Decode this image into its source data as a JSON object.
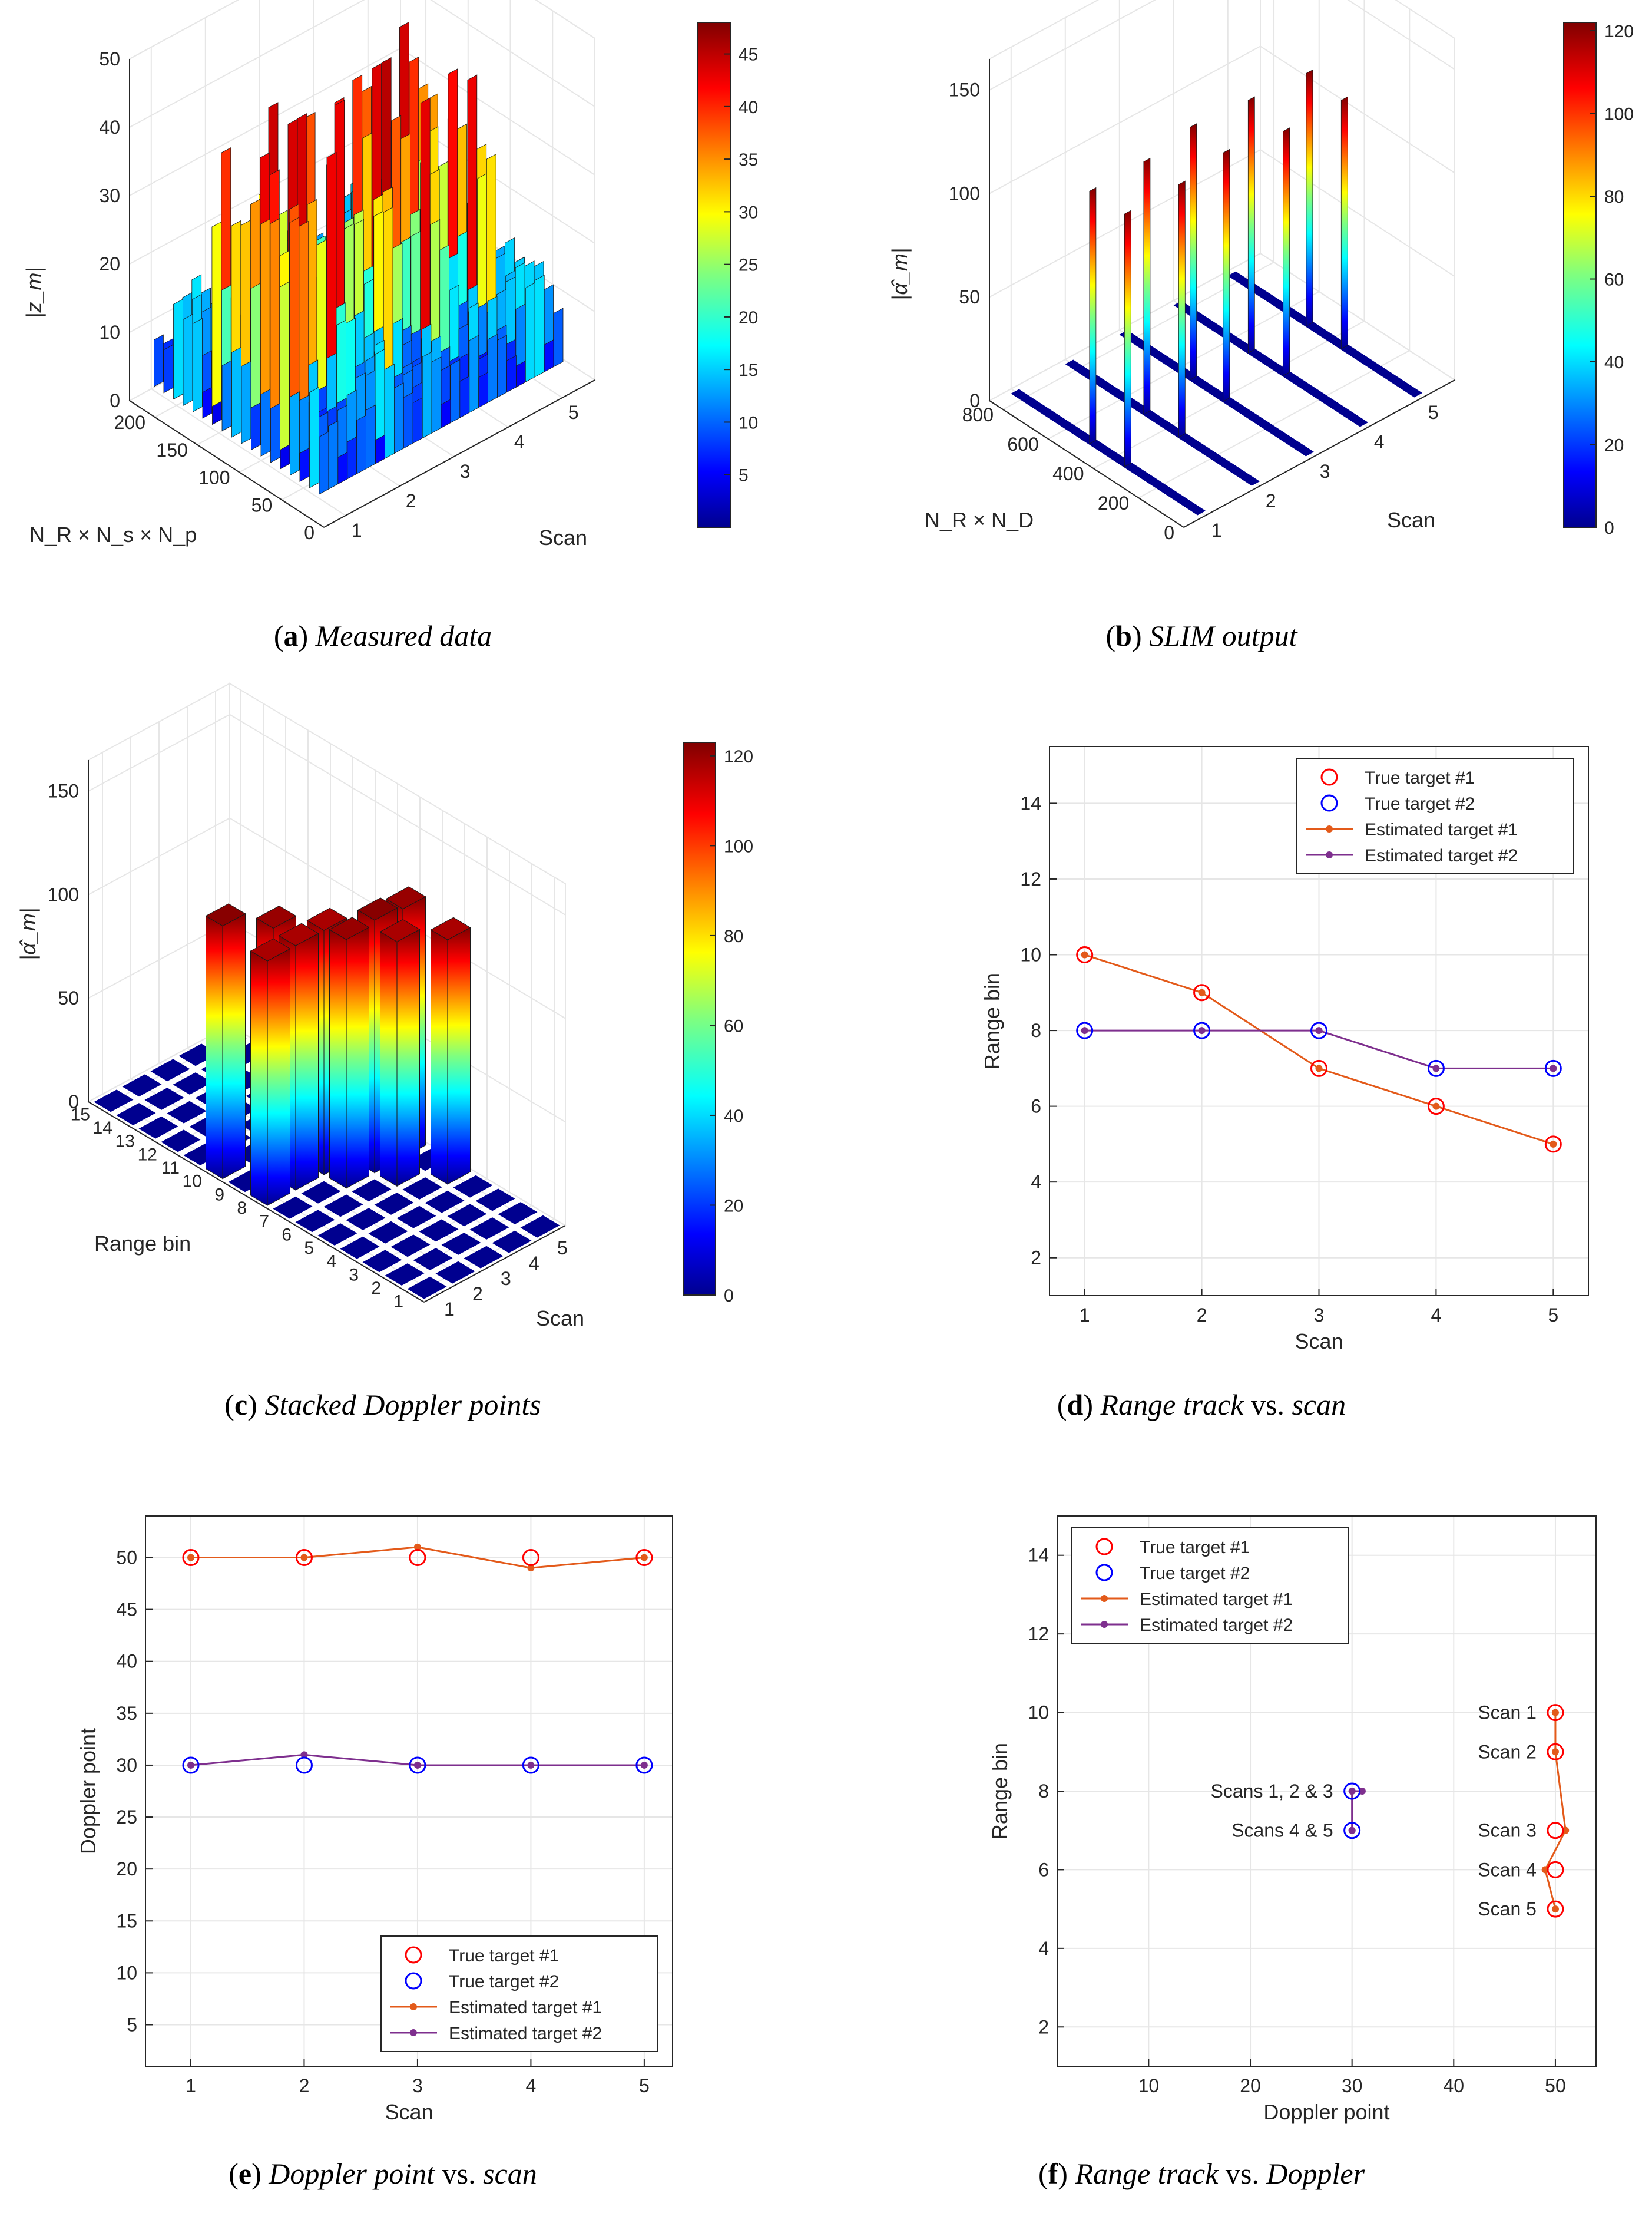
{
  "captions": {
    "a": {
      "letter": "a",
      "text": "Measured data"
    },
    "b": {
      "letter": "b",
      "text": "SLIM output"
    },
    "c": {
      "letter": "c",
      "text": "Stacked Doppler points"
    },
    "d": {
      "letter": "d",
      "pre": "Range track",
      "mid": " vs. ",
      "post": "scan"
    },
    "e": {
      "letter": "e",
      "pre": "Doppler point",
      "mid": " vs. ",
      "post": "scan"
    },
    "f": {
      "letter": "f",
      "pre": "Range track",
      "mid": " vs. ",
      "post": "Doppler"
    }
  },
  "colors": {
    "true1": "#ff0000",
    "true2": "#0000ff",
    "est1": "#e35a1a",
    "est2": "#7e2f8e",
    "grid": "#e6e6e6",
    "axis": "#262626"
  },
  "chart_data": [
    {
      "id": "a",
      "type": "surface3d",
      "title": "",
      "zlabel": "|z_m|",
      "ylabel": "N_R × N_s × N_p",
      "xlabel": "Scan",
      "zticks": [
        0,
        10,
        20,
        30,
        40,
        50
      ],
      "yticks": [
        0,
        50,
        100,
        150,
        200
      ],
      "xticks": [
        1,
        2,
        3,
        4,
        5
      ],
      "colorbar": {
        "min": 0,
        "max": 48,
        "ticks": [
          5,
          10,
          15,
          20,
          25,
          30,
          35,
          40,
          45
        ]
      }
    },
    {
      "id": "b",
      "type": "stem3d",
      "title": "",
      "zlabel": "|α̂_m|",
      "ylabel": "N_R × N_D",
      "xlabel": "Scan",
      "zticks": [
        0,
        50,
        100,
        150
      ],
      "yticks": [
        0,
        200,
        400,
        600,
        800
      ],
      "xticks": [
        1,
        2,
        3,
        4,
        5
      ],
      "colorbar": {
        "min": 0,
        "max": 122,
        "ticks": [
          0,
          20,
          40,
          60,
          80,
          100,
          120
        ]
      }
    },
    {
      "id": "c",
      "type": "bar3d",
      "title": "",
      "zlabel": "|α̂_m|",
      "ylabel": "Range bin",
      "xlabel": "Scan",
      "zticks": [
        0,
        50,
        100,
        150
      ],
      "yticks": [
        1,
        2,
        3,
        4,
        5,
        6,
        7,
        8,
        9,
        10,
        11,
        12,
        13,
        14,
        15
      ],
      "xticks": [
        1,
        2,
        3,
        4,
        5
      ],
      "colorbar": {
        "min": 0,
        "max": 123,
        "ticks": [
          0,
          20,
          40,
          60,
          80,
          100,
          120
        ]
      }
    },
    {
      "id": "d",
      "type": "line",
      "title": "",
      "xlabel": "Scan",
      "ylabel": "Range bin",
      "xlim": [
        0.7,
        5.3
      ],
      "ylim": [
        1,
        15.5
      ],
      "xticks": [
        1,
        2,
        3,
        4,
        5
      ],
      "yticks": [
        2,
        4,
        6,
        8,
        10,
        12,
        14
      ],
      "legend": "top-right",
      "series": [
        {
          "name": "True target #1",
          "style": "circle",
          "x": [
            1,
            2,
            3,
            4,
            5
          ],
          "y": [
            10,
            9,
            7,
            6,
            5
          ]
        },
        {
          "name": "True target #2",
          "style": "circle",
          "x": [
            1,
            2,
            3,
            4,
            5
          ],
          "y": [
            8,
            8,
            8,
            7,
            7
          ]
        },
        {
          "name": "Estimated target #1",
          "style": "line-dot",
          "x": [
            1,
            2,
            3,
            4,
            5
          ],
          "y": [
            10,
            9,
            7,
            6,
            5
          ]
        },
        {
          "name": "Estimated target #2",
          "style": "line-dot",
          "x": [
            1,
            2,
            3,
            4,
            5
          ],
          "y": [
            8,
            8,
            8,
            7,
            7
          ]
        }
      ]
    },
    {
      "id": "e",
      "type": "line",
      "title": "",
      "xlabel": "Scan",
      "ylabel": "Doppler point",
      "xlim": [
        0.6,
        5.25
      ],
      "ylim": [
        1,
        54
      ],
      "xticks": [
        1,
        2,
        3,
        4,
        5
      ],
      "yticks": [
        5,
        10,
        15,
        20,
        25,
        30,
        35,
        40,
        45,
        50
      ],
      "legend": "bottom-right",
      "series": [
        {
          "name": "True target #1",
          "style": "circle",
          "x": [
            1,
            2,
            3,
            4,
            5
          ],
          "y": [
            50,
            50,
            50,
            50,
            50
          ]
        },
        {
          "name": "True target #2",
          "style": "circle",
          "x": [
            1,
            2,
            3,
            4,
            5
          ],
          "y": [
            30,
            30,
            30,
            30,
            30
          ]
        },
        {
          "name": "Estimated target #1",
          "style": "line-dot",
          "x": [
            1,
            2,
            3,
            4,
            5
          ],
          "y": [
            50,
            50,
            51,
            49,
            50
          ]
        },
        {
          "name": "Estimated target #2",
          "style": "line-dot",
          "x": [
            1,
            2,
            3,
            4,
            5
          ],
          "y": [
            30,
            31,
            30,
            30,
            30
          ]
        }
      ]
    },
    {
      "id": "f",
      "type": "line",
      "title": "",
      "xlabel": "Doppler point",
      "ylabel": "Range bin",
      "xlim": [
        1,
        54
      ],
      "ylim": [
        1,
        15
      ],
      "xticks": [
        10,
        20,
        30,
        40,
        50
      ],
      "yticks": [
        2,
        4,
        6,
        8,
        10,
        12,
        14
      ],
      "legend": "top-left",
      "series": [
        {
          "name": "True target #1",
          "style": "circle",
          "x": [
            50,
            50,
            50,
            50,
            50
          ],
          "y": [
            10,
            9,
            7,
            6,
            5
          ]
        },
        {
          "name": "True target #2",
          "style": "circle",
          "x": [
            30,
            30
          ],
          "y": [
            8,
            7
          ]
        },
        {
          "name": "Estimated target #1",
          "style": "line-dot",
          "x": [
            50,
            50,
            51,
            49,
            50
          ],
          "y": [
            10,
            9,
            7,
            6,
            5
          ]
        },
        {
          "name": "Estimated target #2",
          "style": "line-dot",
          "x": [
            30,
            31,
            30,
            30,
            30
          ],
          "y": [
            8,
            8,
            8,
            7,
            7
          ]
        }
      ],
      "annotations": [
        {
          "text": "Scan 1",
          "x": 50,
          "y": 10
        },
        {
          "text": "Scan 2",
          "x": 50,
          "y": 9
        },
        {
          "text": "Scan 3",
          "x": 50,
          "y": 7
        },
        {
          "text": "Scan 4",
          "x": 50,
          "y": 6
        },
        {
          "text": "Scan 5",
          "x": 50,
          "y": 5
        },
        {
          "text": "Scans 1, 2 & 3",
          "x": 30,
          "y": 8
        },
        {
          "text": "Scans 4 & 5",
          "x": 30,
          "y": 7
        }
      ]
    }
  ]
}
